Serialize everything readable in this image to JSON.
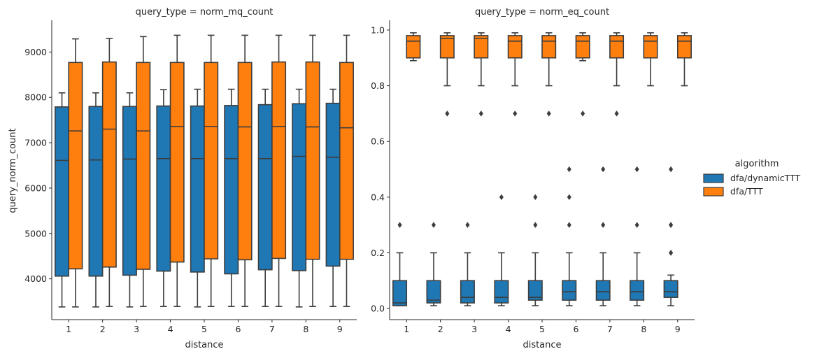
{
  "colors": {
    "dfa/dynamicTTT": "#1f77b4",
    "dfa/TTT": "#ff7f0e",
    "edge": "#3d3d3d"
  },
  "legend": {
    "title": "algorithm",
    "entries": [
      "dfa/dynamicTTT",
      "dfa/TTT"
    ]
  },
  "chart_data": [
    {
      "type": "box",
      "title": "query_type = norm_mq_count",
      "xlabel": "distance",
      "ylabel": "query_norm_count",
      "ylim": [
        3100,
        9700
      ],
      "yticks": [
        4000,
        5000,
        6000,
        7000,
        8000,
        9000
      ],
      "yticklabels": [
        "4000",
        "5000",
        "6000",
        "7000",
        "8000",
        "9000"
      ],
      "categories": [
        "1",
        "2",
        "3",
        "4",
        "5",
        "6",
        "7",
        "8",
        "9"
      ],
      "series": [
        {
          "name": "dfa/dynamicTTT",
          "boxes": [
            {
              "whislo": 3380,
              "q1": 4060,
              "med": 6610,
              "q3": 7790,
              "whishi": 8100,
              "fliers": []
            },
            {
              "whislo": 3380,
              "q1": 4060,
              "med": 6620,
              "q3": 7800,
              "whishi": 8100,
              "fliers": []
            },
            {
              "whislo": 3380,
              "q1": 4080,
              "med": 6640,
              "q3": 7800,
              "whishi": 8100,
              "fliers": []
            },
            {
              "whislo": 3390,
              "q1": 4170,
              "med": 6650,
              "q3": 7810,
              "whishi": 8170,
              "fliers": []
            },
            {
              "whislo": 3380,
              "q1": 4150,
              "med": 6650,
              "q3": 7810,
              "whishi": 8180,
              "fliers": []
            },
            {
              "whislo": 3390,
              "q1": 4110,
              "med": 6650,
              "q3": 7820,
              "whishi": 8180,
              "fliers": []
            },
            {
              "whislo": 3390,
              "q1": 4200,
              "med": 6650,
              "q3": 7840,
              "whishi": 8180,
              "fliers": []
            },
            {
              "whislo": 3380,
              "q1": 4180,
              "med": 6700,
              "q3": 7860,
              "whishi": 8180,
              "fliers": []
            },
            {
              "whislo": 3390,
              "q1": 4280,
              "med": 6680,
              "q3": 7870,
              "whishi": 8180,
              "fliers": []
            }
          ]
        },
        {
          "name": "dfa/TTT",
          "boxes": [
            {
              "whislo": 3380,
              "q1": 4220,
              "med": 7260,
              "q3": 8770,
              "whishi": 9290,
              "fliers": []
            },
            {
              "whislo": 3390,
              "q1": 4260,
              "med": 7300,
              "q3": 8780,
              "whishi": 9300,
              "fliers": []
            },
            {
              "whislo": 3390,
              "q1": 4210,
              "med": 7260,
              "q3": 8770,
              "whishi": 9340,
              "fliers": []
            },
            {
              "whislo": 3390,
              "q1": 4370,
              "med": 7360,
              "q3": 8770,
              "whishi": 9370,
              "fliers": []
            },
            {
              "whislo": 3390,
              "q1": 4440,
              "med": 7360,
              "q3": 8770,
              "whishi": 9370,
              "fliers": []
            },
            {
              "whislo": 3390,
              "q1": 4420,
              "med": 7350,
              "q3": 8770,
              "whishi": 9370,
              "fliers": []
            },
            {
              "whislo": 3390,
              "q1": 4450,
              "med": 7360,
              "q3": 8780,
              "whishi": 9370,
              "fliers": []
            },
            {
              "whislo": 3390,
              "q1": 4430,
              "med": 7350,
              "q3": 8780,
              "whishi": 9370,
              "fliers": []
            },
            {
              "whislo": 3390,
              "q1": 4430,
              "med": 7330,
              "q3": 8770,
              "whishi": 9370,
              "fliers": []
            }
          ]
        }
      ]
    },
    {
      "type": "box",
      "title": "query_type = norm_eq_count",
      "xlabel": "distance",
      "ylabel": "",
      "ylim": [
        -0.04,
        1.035
      ],
      "yticks": [
        0.0,
        0.2,
        0.4,
        0.6,
        0.8,
        1.0
      ],
      "yticklabels": [
        "0.0",
        "0.2",
        "0.4",
        "0.6",
        "0.8",
        "1.0"
      ],
      "categories": [
        "1",
        "2",
        "3",
        "4",
        "5",
        "6",
        "7",
        "8",
        "9"
      ],
      "series": [
        {
          "name": "dfa/dynamicTTT",
          "boxes": [
            {
              "whislo": 0.01,
              "q1": 0.01,
              "med": 0.02,
              "q3": 0.1,
              "whishi": 0.2,
              "fliers": [
                0.3
              ]
            },
            {
              "whislo": 0.01,
              "q1": 0.02,
              "med": 0.03,
              "q3": 0.1,
              "whishi": 0.2,
              "fliers": [
                0.3
              ]
            },
            {
              "whislo": 0.01,
              "q1": 0.02,
              "med": 0.04,
              "q3": 0.1,
              "whishi": 0.2,
              "fliers": [
                0.3
              ]
            },
            {
              "whislo": 0.01,
              "q1": 0.02,
              "med": 0.04,
              "q3": 0.1,
              "whishi": 0.2,
              "fliers": [
                0.4
              ]
            },
            {
              "whislo": 0.01,
              "q1": 0.03,
              "med": 0.04,
              "q3": 0.1,
              "whishi": 0.2,
              "fliers": [
                0.3,
                0.4
              ]
            },
            {
              "whislo": 0.01,
              "q1": 0.03,
              "med": 0.06,
              "q3": 0.1,
              "whishi": 0.2,
              "fliers": [
                0.3,
                0.4,
                0.5
              ]
            },
            {
              "whislo": 0.01,
              "q1": 0.03,
              "med": 0.06,
              "q3": 0.1,
              "whishi": 0.2,
              "fliers": [
                0.3,
                0.5
              ]
            },
            {
              "whislo": 0.01,
              "q1": 0.03,
              "med": 0.06,
              "q3": 0.1,
              "whishi": 0.2,
              "fliers": [
                0.3,
                0.5
              ]
            },
            {
              "whislo": 0.01,
              "q1": 0.04,
              "med": 0.06,
              "q3": 0.1,
              "whishi": 0.12,
              "fliers": [
                0.2,
                0.2,
                0.3,
                0.3,
                0.5
              ]
            }
          ]
        },
        {
          "name": "dfa/TTT",
          "boxes": [
            {
              "whislo": 0.89,
              "q1": 0.9,
              "med": 0.96,
              "q3": 0.98,
              "whishi": 0.99,
              "fliers": []
            },
            {
              "whislo": 0.8,
              "q1": 0.9,
              "med": 0.97,
              "q3": 0.98,
              "whishi": 0.99,
              "fliers": [
                0.7
              ]
            },
            {
              "whislo": 0.8,
              "q1": 0.9,
              "med": 0.97,
              "q3": 0.98,
              "whishi": 0.99,
              "fliers": [
                0.7
              ]
            },
            {
              "whislo": 0.8,
              "q1": 0.9,
              "med": 0.96,
              "q3": 0.98,
              "whishi": 0.99,
              "fliers": [
                0.7
              ]
            },
            {
              "whislo": 0.8,
              "q1": 0.9,
              "med": 0.96,
              "q3": 0.98,
              "whishi": 0.99,
              "fliers": [
                0.7
              ]
            },
            {
              "whislo": 0.89,
              "q1": 0.9,
              "med": 0.96,
              "q3": 0.98,
              "whishi": 0.99,
              "fliers": [
                0.7
              ]
            },
            {
              "whislo": 0.8,
              "q1": 0.9,
              "med": 0.96,
              "q3": 0.98,
              "whishi": 0.99,
              "fliers": [
                0.7
              ]
            },
            {
              "whislo": 0.8,
              "q1": 0.9,
              "med": 0.96,
              "q3": 0.98,
              "whishi": 0.99,
              "fliers": []
            },
            {
              "whislo": 0.8,
              "q1": 0.9,
              "med": 0.96,
              "q3": 0.98,
              "whishi": 0.99,
              "fliers": []
            }
          ]
        }
      ]
    }
  ]
}
